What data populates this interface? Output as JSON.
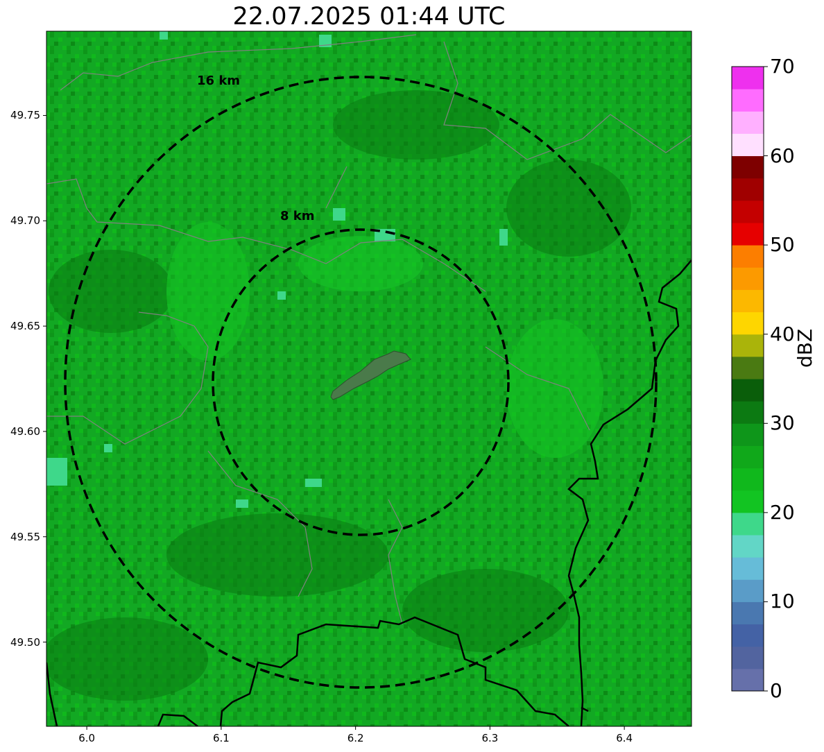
{
  "title": "22.07.2025 01:44 UTC",
  "map": {
    "extent": {
      "lon_min": 5.97,
      "lon_max": 6.45,
      "lat_min": 49.46,
      "lat_max": 49.79
    },
    "xticks": [
      {
        "value": 6.0,
        "label": "6.0"
      },
      {
        "value": 6.1,
        "label": "6.1"
      },
      {
        "value": 6.2,
        "label": "6.2"
      },
      {
        "value": 6.3,
        "label": "6.3"
      },
      {
        "value": 6.4,
        "label": "6.4"
      }
    ],
    "yticks": [
      {
        "value": 49.5,
        "label": "49.50"
      },
      {
        "value": 49.55,
        "label": "49.55"
      },
      {
        "value": 49.6,
        "label": "49.60"
      },
      {
        "value": 49.65,
        "label": "49.65"
      },
      {
        "value": 49.7,
        "label": "49.70"
      },
      {
        "value": 49.75,
        "label": "49.75"
      }
    ],
    "center": {
      "lon": 6.205,
      "lat": 49.623
    },
    "range_rings": [
      {
        "radius_km": 8,
        "label": "8 km"
      },
      {
        "radius_km": 16,
        "label": "16 km"
      }
    ],
    "ring_color": "#000000",
    "background_reflectivity_color": "#12a823",
    "target_polygon_color": "#4a7a4a"
  },
  "colorbar": {
    "label": "dBZ",
    "min": 0,
    "max": 70,
    "ticks": [
      {
        "value": 0,
        "label": "0"
      },
      {
        "value": 10,
        "label": "10"
      },
      {
        "value": 20,
        "label": "20"
      },
      {
        "value": 30,
        "label": "30"
      },
      {
        "value": 40,
        "label": "40"
      },
      {
        "value": 50,
        "label": "50"
      },
      {
        "value": 60,
        "label": "60"
      },
      {
        "value": 70,
        "label": "70"
      }
    ],
    "colors": [
      "#6670aa",
      "#52649f",
      "#4462a5",
      "#4a78b0",
      "#5a9cc8",
      "#66bcd8",
      "#62d6c6",
      "#3ed88a",
      "#12c422",
      "#10b81c",
      "#10a81a",
      "#0e961a",
      "#0c7a12",
      "#0a5e0a",
      "#4a7a12",
      "#aab40a",
      "#fed600",
      "#fcb800",
      "#fc9a00",
      "#fc7e00",
      "#e60000",
      "#c40000",
      "#a00000",
      "#7e0000",
      "#ffe0ff",
      "#ffb0ff",
      "#ff6cff",
      "#ee30ee"
    ]
  }
}
